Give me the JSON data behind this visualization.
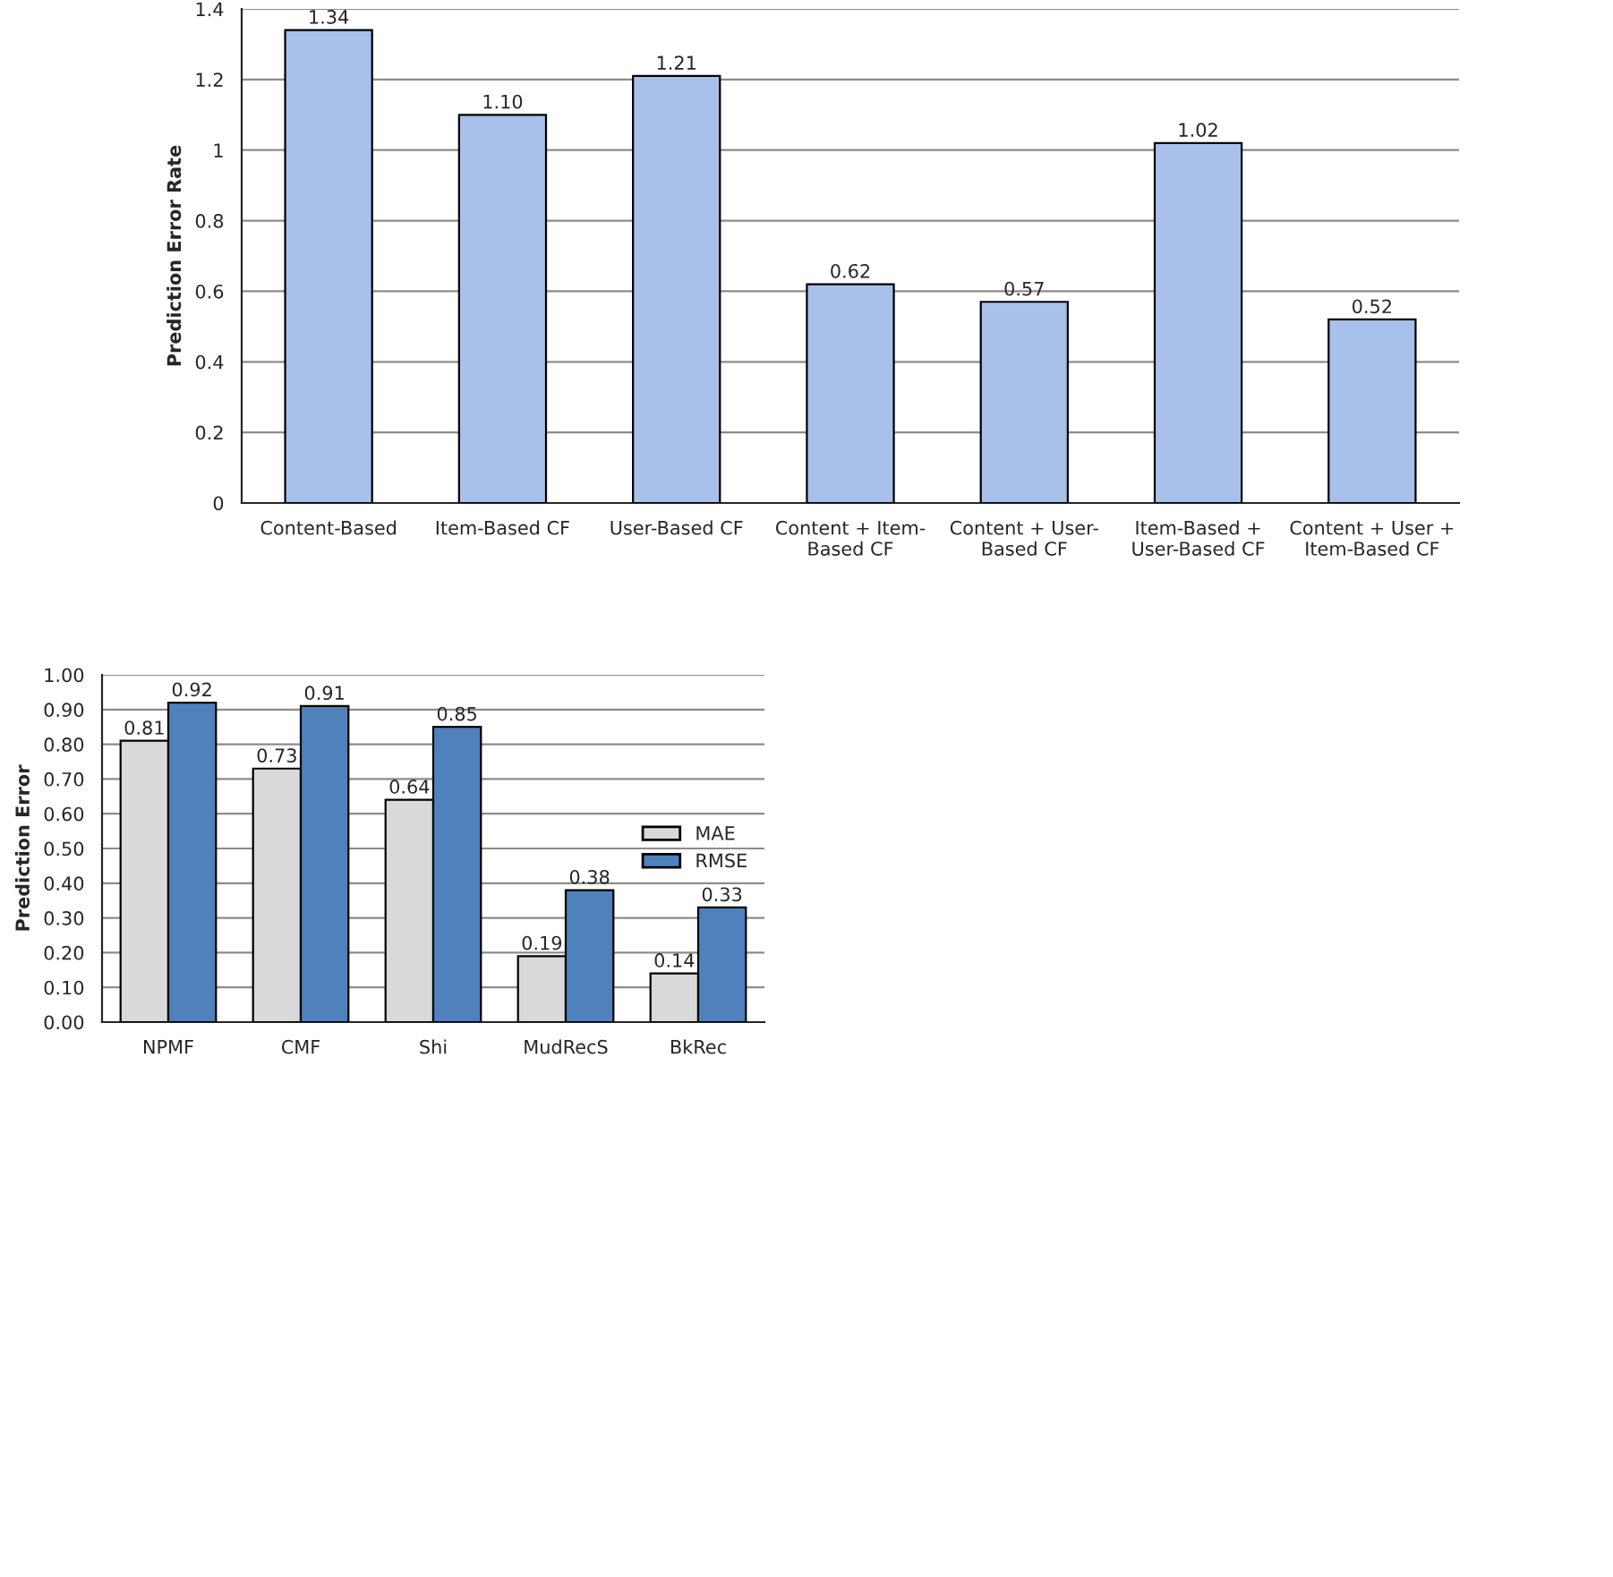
{
  "chart_data": [
    {
      "type": "bar",
      "ylabel": "Prediction Error Rate",
      "categories": [
        "Content-Based",
        "Item-Based CF",
        "User-Based CF",
        "Content + Item-\nBased CF",
        "Content + User-\nBased CF",
        "Item-Based +\nUser-Based CF",
        "Content + User +\nItem-Based CF"
      ],
      "values": [
        1.34,
        1.1,
        1.21,
        0.62,
        0.57,
        1.02,
        0.52
      ],
      "color": "#a9c0ea",
      "value_labels": [
        "1.34",
        "1.10",
        "1.21",
        "0.62",
        "0.57",
        "1.02",
        "0.52"
      ],
      "ylim": [
        0,
        1.4
      ],
      "yticks": [
        0,
        0.2,
        0.4,
        0.6,
        0.8,
        1,
        1.2,
        1.4
      ],
      "grid": "y"
    },
    {
      "type": "bar",
      "ylabel": "Prediction Error",
      "categories": [
        "NPMF",
        "CMF",
        "Shi",
        "MudRecS",
        "BkRec"
      ],
      "series": [
        {
          "name": "MAE",
          "color": "#d9d9d9",
          "values": [
            0.81,
            0.73,
            0.64,
            0.19,
            0.14
          ]
        },
        {
          "name": "RMSE",
          "color": "#4f81bd",
          "values": [
            0.92,
            0.91,
            0.85,
            0.38,
            0.33
          ]
        }
      ],
      "data_labels": true,
      "ylim": [
        0,
        1.0
      ],
      "yticks": [
        {
          "value": 0,
          "label": "0.00"
        },
        {
          "value": 0.1,
          "label": "0.10"
        },
        {
          "value": 0.2,
          "label": "0.20"
        },
        {
          "value": 0.3,
          "label": "0.30"
        },
        {
          "value": 0.4,
          "label": "0.40"
        },
        {
          "value": 0.5,
          "label": "0.50"
        },
        {
          "value": 0.6,
          "label": "0.60"
        },
        {
          "value": 0.7,
          "label": "0.70"
        },
        {
          "value": 0.8,
          "label": "0.80"
        },
        {
          "value": 0.9,
          "label": "0.90"
        },
        {
          "value": 1.0,
          "label": "1.00"
        }
      ],
      "grid": "y",
      "legend": "right"
    }
  ]
}
